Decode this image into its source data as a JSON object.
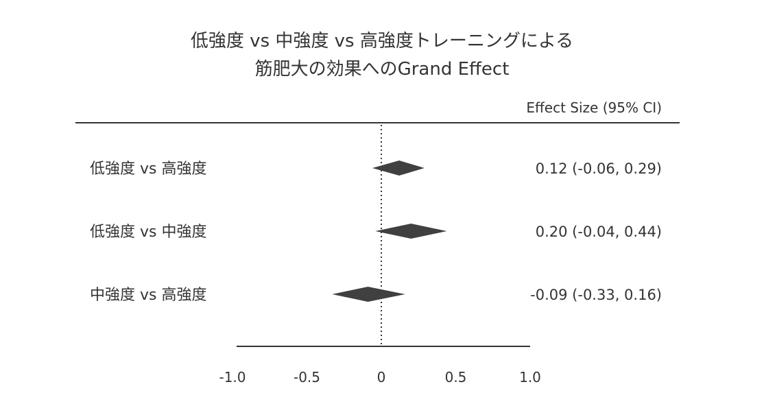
{
  "title_lines": [
    "低強度 vs 中強度 vs 高強度トレーニングによる",
    "筋肥大の効果へのGrand Effect"
  ],
  "colors": {
    "text": "#333333",
    "diamond": "#404040",
    "axis": "#333333"
  },
  "chart_data": {
    "type": "forest",
    "title": "低強度 vs 中強度 vs 高強度トレーニングによる 筋肥大の効果へのGrand Effect",
    "ci_header": "Effect Size (95% CI)",
    "xlim": [
      -1.0,
      1.0
    ],
    "reference_line": 0,
    "x_ticks": [
      "-1.0",
      "-0.5",
      "0",
      "0.5",
      "1.0"
    ],
    "x_tick_values": [
      -1.0,
      -0.5,
      0,
      0.5,
      1.0
    ],
    "rows": [
      {
        "label": "低強度 vs 高強度",
        "estimate": 0.12,
        "lower": -0.06,
        "upper": 0.29,
        "text": "0.12 (-0.06, 0.29)"
      },
      {
        "label": "低強度 vs 中強度",
        "estimate": 0.2,
        "lower": -0.04,
        "upper": 0.44,
        "text": "0.20 (-0.04, 0.44)"
      },
      {
        "label": "中強度 vs 高強度",
        "estimate": -0.09,
        "lower": -0.33,
        "upper": 0.16,
        "text": "-0.09 (-0.33, 0.16)"
      }
    ]
  }
}
